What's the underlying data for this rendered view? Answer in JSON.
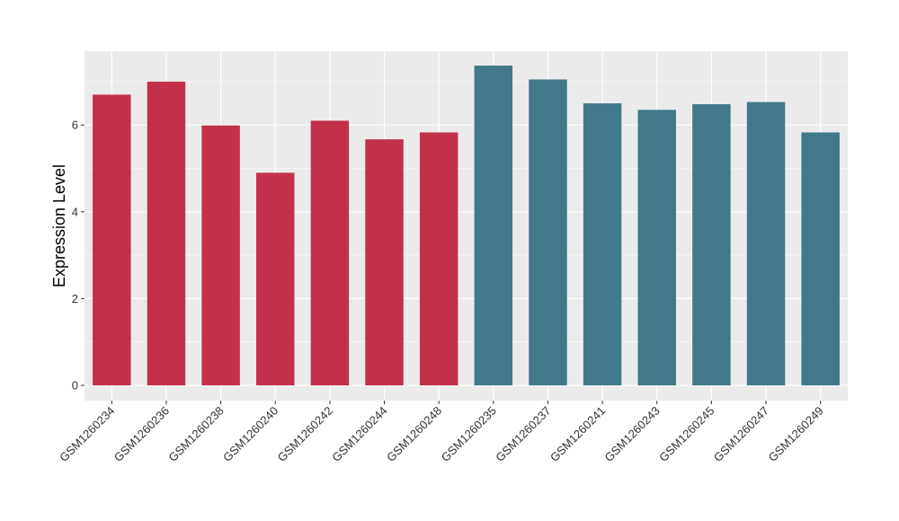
{
  "chart_data": {
    "type": "bar",
    "title": "",
    "xlabel": "",
    "ylabel": "Expression Level",
    "ylim": [
      0,
      7.7
    ],
    "y_ticks": [
      0,
      2,
      4,
      6
    ],
    "grid": true,
    "legend": "none",
    "categories": [
      "GSM1260234",
      "GSM1260236",
      "GSM1260238",
      "GSM1260240",
      "GSM1260242",
      "GSM1260244",
      "GSM1260248",
      "GSM1260235",
      "GSM1260237",
      "GSM1260241",
      "GSM1260243",
      "GSM1260245",
      "GSM1260247",
      "GSM1260249"
    ],
    "values": [
      6.7,
      7.0,
      5.99,
      4.9,
      6.1,
      5.67,
      5.83,
      7.37,
      7.05,
      6.5,
      6.35,
      6.48,
      6.53,
      5.83
    ],
    "bar_colors": [
      "#c3304a",
      "#c3304a",
      "#c3304a",
      "#c3304a",
      "#c3304a",
      "#c3304a",
      "#c3304a",
      "#41798a",
      "#41798a",
      "#41798a",
      "#41798a",
      "#41798a",
      "#41798a",
      "#41798a"
    ],
    "panel_background": "#ebebeb",
    "grid_color": "#ffffff"
  }
}
